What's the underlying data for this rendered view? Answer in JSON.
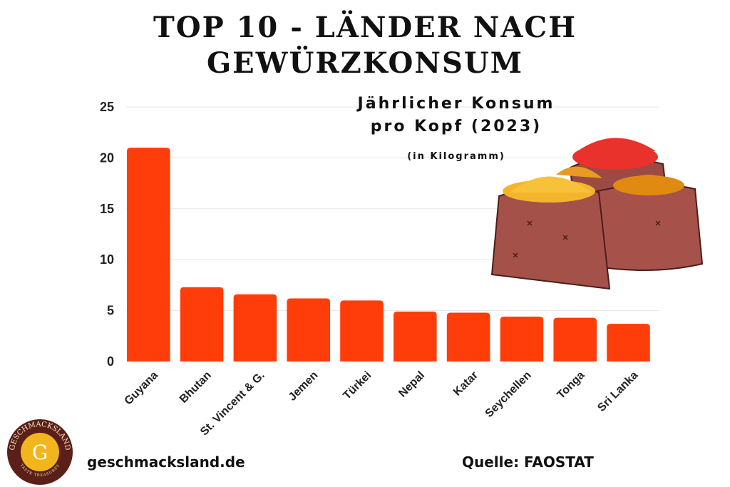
{
  "title_line1": "TOP 10 - LÄNDER NACH",
  "title_line2": "GEWÜRZKONSUM",
  "subtitle_line1": "Jährlicher Konsum",
  "subtitle_line2": "pro Kopf (2023)",
  "unit": "(in Kilogramm)",
  "footer": {
    "website": "geschmacksland.de",
    "source": "Quelle: FAOSTAT"
  },
  "logo": {
    "brand_text": "GESCHMACKSLAND",
    "bottom_text": "TASTE TREASURES",
    "letter": "G"
  },
  "colors": {
    "bar": "#ff3d0a",
    "grid": "#e6e6e6",
    "logo_ring": "#5a1f17",
    "logo_gold": "#f2b51c"
  },
  "chart_data": {
    "type": "bar",
    "categories": [
      "Guyana",
      "Bhutan",
      "St. Vincent & G.",
      "Jemen",
      "Türkei",
      "Nepal",
      "Katar",
      "Seychellen",
      "Tonga",
      "Sri Lanka"
    ],
    "values": [
      21.0,
      7.3,
      6.6,
      6.2,
      6.0,
      4.9,
      4.8,
      4.4,
      4.3,
      3.7
    ],
    "yticks": [
      0,
      5,
      10,
      15,
      20,
      25
    ],
    "ylim": [
      0,
      25
    ],
    "grid": true
  }
}
